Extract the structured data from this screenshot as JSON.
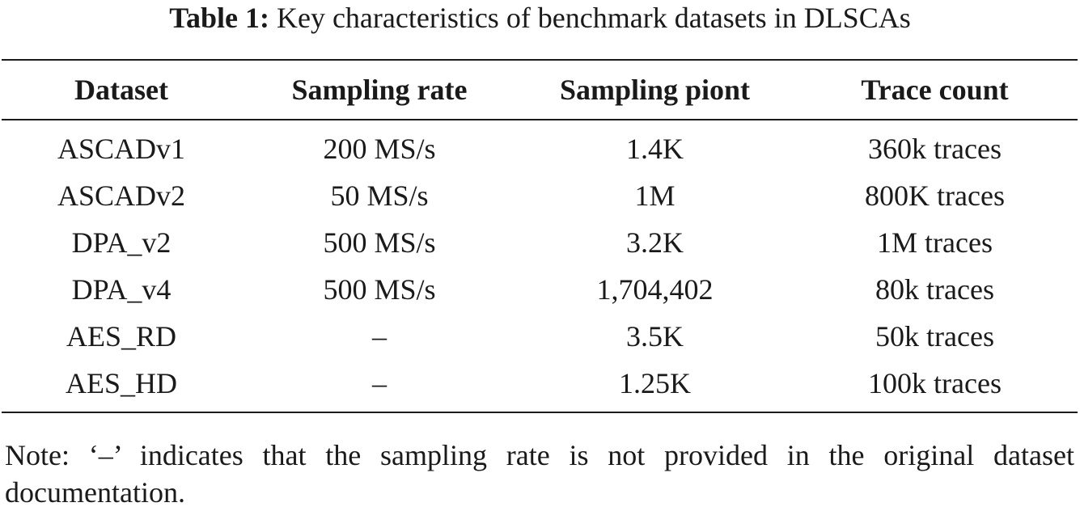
{
  "caption": {
    "label": "Table 1:",
    "text": "Key characteristics of benchmark datasets in DLSCAs"
  },
  "table": {
    "headers": [
      "Dataset",
      "Sampling rate",
      "Sampling piont",
      "Trace count"
    ],
    "rows": [
      [
        "ASCADv1",
        "200 MS/s",
        "1.4K",
        "360k traces"
      ],
      [
        "ASCADv2",
        "50 MS/s",
        "1M",
        "800K traces"
      ],
      [
        "DPA_v2",
        "500 MS/s",
        "3.2K",
        "1M traces"
      ],
      [
        "DPA_v4",
        "500 MS/s",
        "1,704,402",
        "80k traces"
      ],
      [
        "AES_RD",
        "–",
        "3.5K",
        "50k traces"
      ],
      [
        "AES_HD",
        "–",
        "1.25K",
        "100k traces"
      ]
    ]
  },
  "note": "Note: ‘–’ indicates that the sampling rate is not provided in the original dataset documentation."
}
